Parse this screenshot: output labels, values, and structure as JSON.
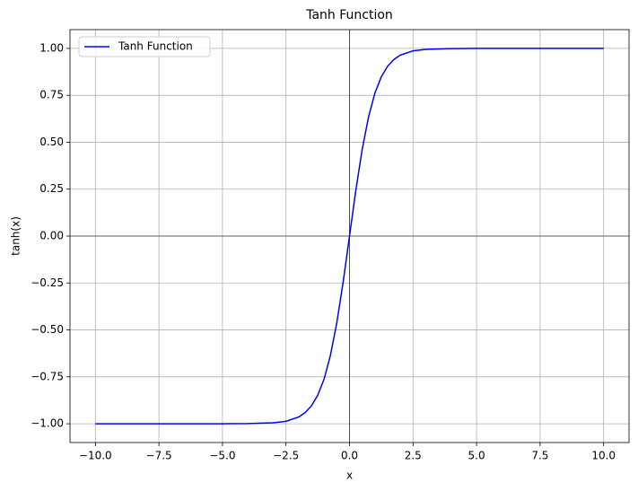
{
  "chart_data": {
    "type": "line",
    "title": "Tanh Function",
    "xlabel": "x",
    "ylabel": "tanh(x)",
    "x": [
      -10,
      -8,
      -6,
      -5,
      -4,
      -3,
      -2.5,
      -2,
      -1.75,
      -1.5,
      -1.25,
      -1,
      -0.75,
      -0.5,
      -0.25,
      0,
      0.25,
      0.5,
      0.75,
      1,
      1.25,
      1.5,
      1.75,
      2,
      2.5,
      3,
      4,
      5,
      6,
      8,
      10
    ],
    "series": [
      {
        "name": "Tanh Function",
        "color": "#0000ff",
        "values": [
          -1,
          -1,
          -1,
          -1,
          -0.999,
          -0.995,
          -0.987,
          -0.964,
          -0.941,
          -0.905,
          -0.848,
          -0.762,
          -0.635,
          -0.462,
          -0.245,
          0,
          0.245,
          0.462,
          0.635,
          0.762,
          0.848,
          0.905,
          0.941,
          0.964,
          0.987,
          0.995,
          0.999,
          1,
          1,
          1,
          1
        ]
      }
    ],
    "xlim": [
      -11,
      11
    ],
    "ylim": [
      -1.1,
      1.1
    ],
    "xticks": [
      {
        "value": -10,
        "label": "−10.0"
      },
      {
        "value": -7.5,
        "label": "−7.5"
      },
      {
        "value": -5,
        "label": "−5.0"
      },
      {
        "value": -2.5,
        "label": "−2.5"
      },
      {
        "value": 0,
        "label": "0.0"
      },
      2.5,
      {
        "value": 5,
        "label": "5.0"
      },
      7.5,
      {
        "value": 10,
        "label": "10.0"
      }
    ],
    "yticks": [
      {
        "value": -1,
        "label": "−1.00"
      },
      {
        "value": -0.75,
        "label": "−0.75"
      },
      {
        "value": -0.5,
        "label": "−0.50"
      },
      {
        "value": -0.25,
        "label": "−0.25"
      },
      {
        "value": 0,
        "label": "0.00"
      },
      0.25,
      {
        "value": 0.5,
        "label": "0.50"
      },
      0.75,
      {
        "value": 1,
        "label": "1.00"
      }
    ],
    "grid": true,
    "axhline": 0,
    "axvline": 0,
    "legend": "upper left"
  }
}
